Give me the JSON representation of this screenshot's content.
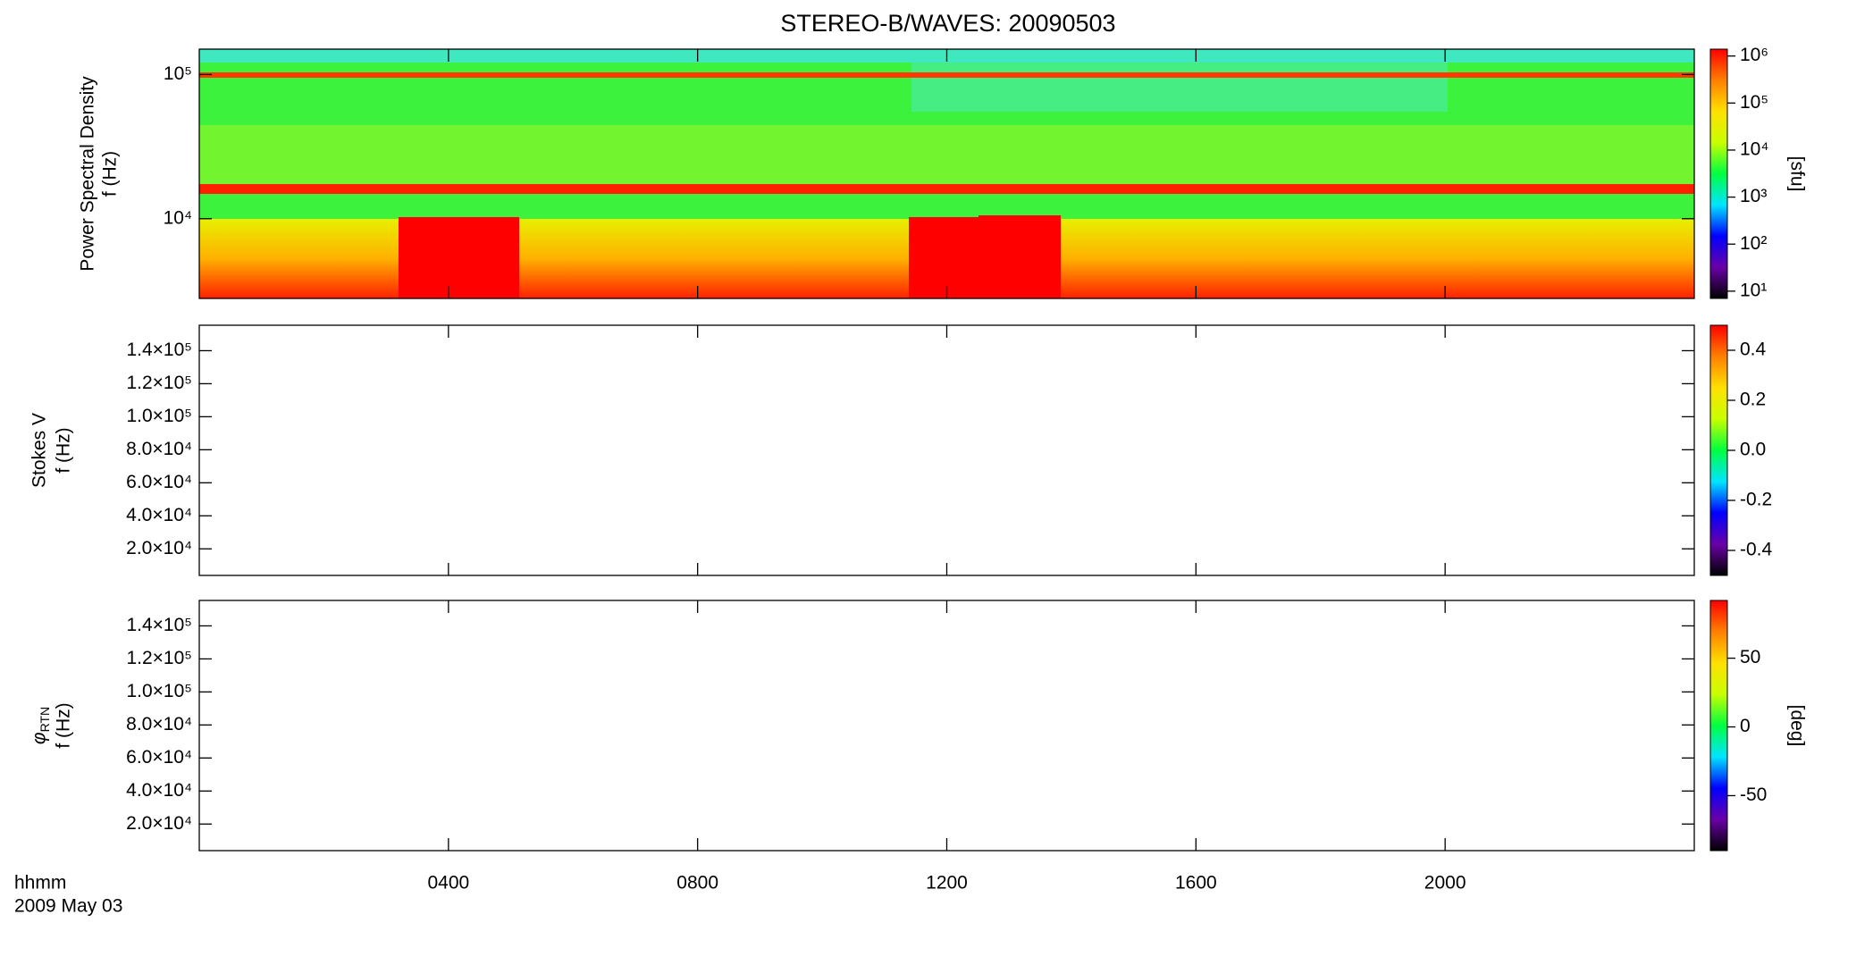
{
  "chart_data": [
    {
      "type": "heatmap",
      "title": "STEREO-B/WAVES: 20090503",
      "ylabel": "Power Spectral Density",
      "ylabel_units": "f (Hz)",
      "ylog": true,
      "ylim": [
        2800,
        150000
      ],
      "yticks": [
        {
          "value": 10000,
          "label": "10⁴"
        },
        {
          "value": 100000,
          "label": "10⁵"
        }
      ],
      "xlim": [
        0,
        2400
      ],
      "xticks": [
        400,
        800,
        1200,
        1600,
        2000
      ],
      "colormap": [
        "#000000",
        "#6a00a8",
        "#0000ff",
        "#00e5ff",
        "#00ff40",
        "#c8ff00",
        "#ffe000",
        "#ff8000",
        "#ff0000"
      ],
      "colorbar": {
        "label": "[sfu]",
        "log": true,
        "lim": [
          7,
          1400000
        ],
        "ticks": [
          {
            "value": 10,
            "label": "10¹"
          },
          {
            "value": 100,
            "label": "10²"
          },
          {
            "value": 1000,
            "label": "10³"
          },
          {
            "value": 10000,
            "label": "10⁴"
          },
          {
            "value": 100000,
            "label": "10⁵"
          },
          {
            "value": 1000000,
            "label": "10⁶"
          }
        ]
      }
    },
    {
      "type": "heatmap",
      "ylabel": "Stokes V",
      "ylabel_units": "f (Hz)",
      "ylog": false,
      "ylim": [
        3900,
        155400
      ],
      "yticks": [
        {
          "value": 20000,
          "label": "2.0×10⁴"
        },
        {
          "value": 40000,
          "label": "4.0×10⁴"
        },
        {
          "value": 60000,
          "label": "6.0×10⁴"
        },
        {
          "value": 80000,
          "label": "8.0×10⁴"
        },
        {
          "value": 100000,
          "label": "1.0×10⁵"
        },
        {
          "value": 120000,
          "label": "1.2×10⁵"
        },
        {
          "value": 140000,
          "label": "1.4×10⁵"
        }
      ],
      "xlim": [
        0,
        2400
      ],
      "xticks": [
        400,
        800,
        1200,
        1600,
        2000
      ],
      "colormap": [
        "#000000",
        "#6a00a8",
        "#0000ff",
        "#00e5ff",
        "#00ff40",
        "#c8ff00",
        "#ffe000",
        "#ff8000",
        "#ff0000"
      ],
      "colorbar": {
        "log": false,
        "lim": [
          -0.5,
          0.5
        ],
        "ticks": [
          -0.4,
          -0.2,
          {
            "value": 0,
            "label": "0.0"
          },
          0.2,
          0.4
        ]
      }
    },
    {
      "type": "heatmap",
      "ylabel": "φ",
      "ylabel_sub": "RTN",
      "ylabel_units": "f (Hz)",
      "ylog": false,
      "ylim": [
        3900,
        155400
      ],
      "yticks": [
        {
          "value": 20000,
          "label": "2.0×10⁴"
        },
        {
          "value": 40000,
          "label": "4.0×10⁴"
        },
        {
          "value": 60000,
          "label": "6.0×10⁴"
        },
        {
          "value": 80000,
          "label": "8.0×10⁴"
        },
        {
          "value": 100000,
          "label": "1.0×10⁵"
        },
        {
          "value": 120000,
          "label": "1.2×10⁵"
        },
        {
          "value": 140000,
          "label": "1.4×10⁵"
        }
      ],
      "xlabel": "hhmm",
      "date": "2009 May 03",
      "xlim": [
        0,
        2400
      ],
      "xticks": [
        {
          "value": 400,
          "label": "0400"
        },
        {
          "value": 800,
          "label": "0800"
        },
        {
          "value": 1200,
          "label": "1200"
        },
        {
          "value": 1600,
          "label": "1600"
        },
        {
          "value": 2000,
          "label": "2000"
        }
      ],
      "colormap": [
        "#000000",
        "#6a00a8",
        "#0000ff",
        "#00e5ff",
        "#00ff40",
        "#c8ff00",
        "#ffe000",
        "#ff8000",
        "#ff0000"
      ],
      "colorbar": {
        "label": "[deg]",
        "log": false,
        "lim": [
          -90,
          92
        ],
        "ticks": [
          -50,
          0,
          50
        ]
      }
    }
  ]
}
